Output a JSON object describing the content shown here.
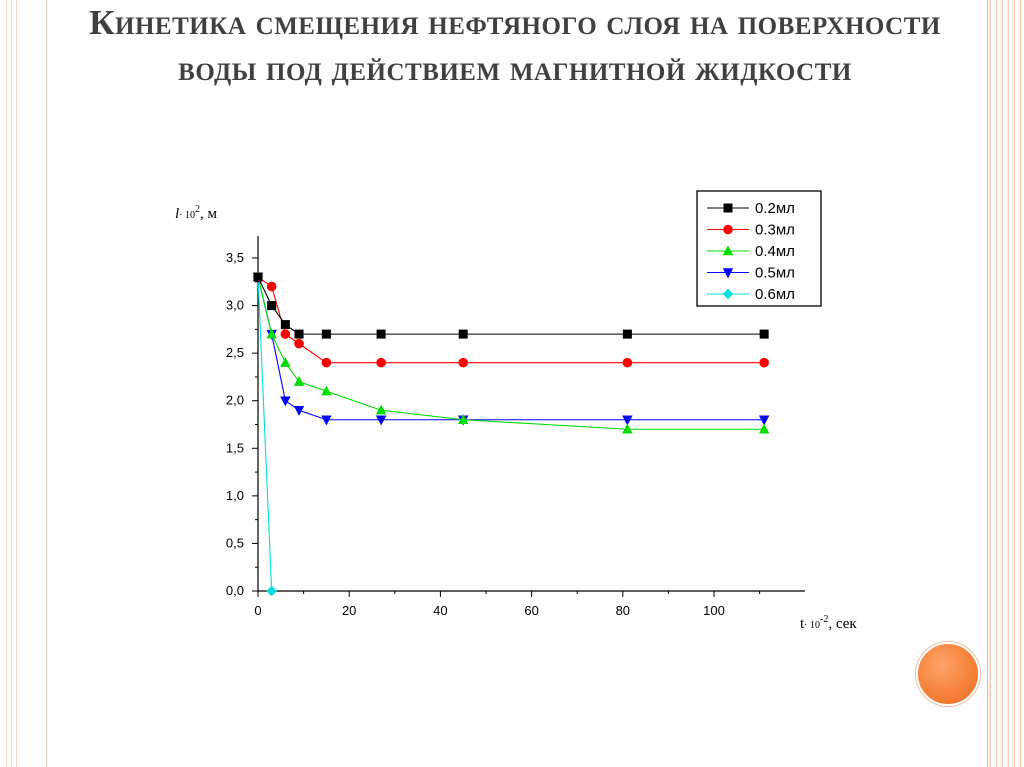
{
  "slide": {
    "title": "Кинетика смещения нефтяного слоя на поверхности воды под действием магнитной жидкости"
  },
  "chart_data": {
    "type": "line",
    "ylabel_var": "l",
    "ylabel_rest": "· 10",
    "ylabel_exp": "2",
    "ylabel_unit": ", м",
    "xlabel_var": "t",
    "xlabel_rest": "· 10",
    "xlabel_exp": "-2",
    "xlabel_unit": ", сек",
    "xlim": [
      0,
      120
    ],
    "ylim": [
      0,
      3.5
    ],
    "xticks": [
      "0",
      "20",
      "40",
      "60",
      "80",
      "100"
    ],
    "xtick_values": [
      0,
      20,
      40,
      60,
      80,
      100
    ],
    "yticks": [
      "0,0",
      "0,5",
      "1,0",
      "1,5",
      "2,0",
      "2,5",
      "3,0",
      "3,5"
    ],
    "ytick_values": [
      0,
      0.5,
      1.0,
      1.5,
      2.0,
      2.5,
      3.0,
      3.5
    ],
    "grid": false,
    "legend_position": "top-right",
    "series": [
      {
        "name": "0.2мл",
        "color": "#000000",
        "marker": "square",
        "x": [
          0,
          3,
          6,
          9,
          15,
          27,
          45,
          81,
          111
        ],
        "y": [
          3.3,
          3.0,
          2.8,
          2.7,
          2.7,
          2.7,
          2.7,
          2.7,
          2.7
        ]
      },
      {
        "name": "0.3мл",
        "color": "#ff0000",
        "marker": "circle",
        "x": [
          0,
          3,
          6,
          9,
          15,
          27,
          45,
          81,
          111
        ],
        "y": [
          3.3,
          3.2,
          2.7,
          2.6,
          2.4,
          2.4,
          2.4,
          2.4,
          2.4
        ]
      },
      {
        "name": "0.4мл",
        "color": "#00dd00",
        "marker": "triangle-up",
        "x": [
          0,
          3,
          6,
          9,
          15,
          27,
          45,
          81,
          111
        ],
        "y": [
          3.3,
          2.7,
          2.4,
          2.2,
          2.1,
          1.9,
          1.8,
          1.7,
          1.7
        ]
      },
      {
        "name": "0.5мл",
        "color": "#0000ff",
        "marker": "triangle-down",
        "x": [
          0,
          3,
          6,
          9,
          15,
          27,
          45,
          81,
          111
        ],
        "y": [
          3.3,
          2.7,
          2.0,
          1.9,
          1.8,
          1.8,
          1.8,
          1.8,
          1.8
        ]
      },
      {
        "name": "0.6мл",
        "color": "#00dddd",
        "marker": "diamond",
        "x": [
          0,
          3
        ],
        "y": [
          3.3,
          0.0
        ]
      }
    ]
  }
}
